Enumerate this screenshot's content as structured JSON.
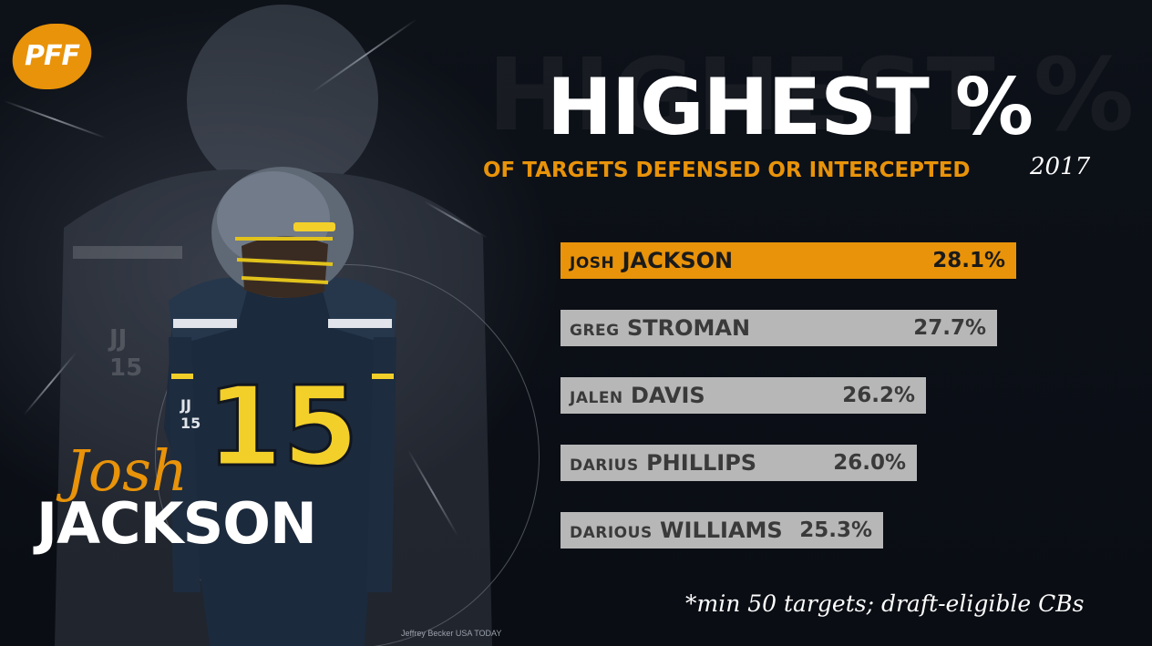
{
  "brand": {
    "logo_text": "PFF",
    "accent": "#e8930a"
  },
  "player": {
    "first_name": "Josh",
    "last_name": "JACKSON",
    "jersey": "15",
    "jersey_patch": "JJ 15"
  },
  "photo_credit": "Jeffrey Becker USA TODAY",
  "footnote": "*min 50 targets; draft-eligible CBs",
  "chart_data": {
    "type": "bar",
    "orientation": "horizontal",
    "title": "HIGHEST %",
    "subtitle": "OF TARGETS DEFENSED OR INTERCEPTED",
    "year": "2017",
    "bars": [
      {
        "first": "JOSH",
        "last": "JACKSON",
        "value": 28.1,
        "label": "28.1%",
        "highlight": true
      },
      {
        "first": "GREG",
        "last": "STROMAN",
        "value": 27.7,
        "label": "27.7%",
        "highlight": false
      },
      {
        "first": "JALEN",
        "last": "DAVIS",
        "value": 26.2,
        "label": "26.2%",
        "highlight": false
      },
      {
        "first": "DARIUS",
        "last": "PHILLIPS",
        "value": 26.0,
        "label": "26.0%",
        "highlight": false
      },
      {
        "first": "DARIOUS",
        "last": "WILLIAMS",
        "value": 25.3,
        "label": "25.3%",
        "highlight": false
      }
    ],
    "colors": {
      "highlight": "#e8930a",
      "other": "#b7b7b7"
    }
  }
}
